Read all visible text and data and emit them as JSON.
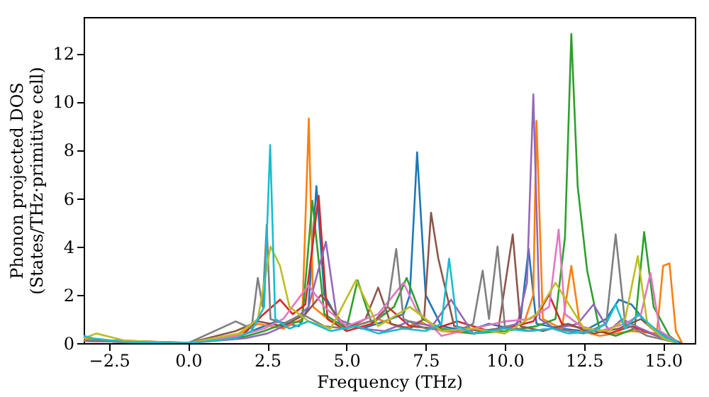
{
  "chart_data": {
    "type": "line",
    "xlabel": "Frequency (THz)",
    "ylabel": "Phonon projected DOS\n(States/THz·primitive cell)",
    "xlim": [
      -3.3,
      16.0
    ],
    "ylim": [
      0,
      13.5
    ],
    "xticks": [
      {
        "value": -2.5,
        "label": "−2.5"
      },
      {
        "value": 0,
        "label": "0.0"
      },
      {
        "value": 2.5,
        "label": "2.5"
      },
      {
        "value": 5,
        "label": "5.0"
      },
      {
        "value": 7.5,
        "label": "7.5"
      },
      {
        "value": 10,
        "label": "10.0"
      },
      {
        "value": 12.5,
        "label": "12.5"
      },
      {
        "value": 15,
        "label": "15.0"
      }
    ],
    "yticks": [
      0,
      2,
      4,
      6,
      8,
      10,
      12
    ],
    "grid": false,
    "legend": false,
    "marker": "none",
    "line_style": "solid",
    "series": [
      {
        "color": "#1f77b4",
        "x": [
          -3.3,
          -2,
          0,
          1.5,
          2.2,
          2.8,
          3.5,
          3.8,
          4.05,
          4.3,
          4.8,
          5.5,
          6.2,
          6.8,
          7.0,
          7.23,
          7.5,
          8.0,
          8.8,
          9.5,
          10.2,
          10.5,
          10.75,
          11.0,
          11.8,
          12.5,
          13.2,
          13.6,
          14.0,
          14.5,
          15.2,
          15.6
        ],
        "values": [
          0.1,
          0.05,
          0.02,
          0.2,
          0.6,
          0.9,
          0.7,
          1.5,
          6.5,
          2.0,
          0.8,
          0.6,
          0.9,
          1.2,
          2.0,
          7.9,
          2.0,
          0.7,
          0.5,
          0.8,
          0.6,
          1.0,
          3.9,
          0.8,
          0.6,
          0.5,
          1.0,
          1.8,
          1.6,
          0.8,
          0.2,
          0.0
        ]
      },
      {
        "color": "#ff7f0e",
        "x": [
          -3.3,
          -2.5,
          0,
          1.5,
          2.2,
          3.0,
          3.6,
          3.81,
          3.95,
          4.5,
          5.2,
          6.0,
          6.8,
          7.3,
          8.0,
          9.0,
          10.0,
          10.6,
          10.9,
          11.0,
          11.2,
          11.8,
          12.1,
          12.4,
          13.0,
          14.0,
          14.8,
          15.0,
          15.2,
          15.4,
          15.6
        ],
        "values": [
          0.2,
          0.1,
          0.02,
          0.3,
          0.8,
          0.6,
          1.0,
          9.3,
          1.5,
          0.9,
          0.7,
          1.0,
          0.6,
          0.9,
          0.5,
          0.4,
          0.6,
          0.8,
          2.0,
          9.2,
          1.0,
          0.6,
          3.2,
          0.5,
          0.3,
          0.5,
          0.4,
          3.2,
          3.3,
          0.5,
          0.0
        ]
      },
      {
        "color": "#2ca02c",
        "x": [
          -3.3,
          -2,
          0,
          1.6,
          2.4,
          3.0,
          3.6,
          3.92,
          4.3,
          5.0,
          5.35,
          5.8,
          6.5,
          6.9,
          7.4,
          8.0,
          9.0,
          10.0,
          11.0,
          11.6,
          11.9,
          12.1,
          12.3,
          12.6,
          13.0,
          13.5,
          14.1,
          14.4,
          14.7,
          15.2,
          15.5
        ],
        "values": [
          0.1,
          0.05,
          0.02,
          0.2,
          0.5,
          0.8,
          0.9,
          5.9,
          1.2,
          0.6,
          2.6,
          0.8,
          1.5,
          2.7,
          1.0,
          0.6,
          0.4,
          0.5,
          0.7,
          1.0,
          4.4,
          12.8,
          6.5,
          3.0,
          0.5,
          0.3,
          0.6,
          4.6,
          1.5,
          0.3,
          0.0
        ]
      },
      {
        "color": "#d62728",
        "x": [
          -3.3,
          -2,
          0,
          1.7,
          2.3,
          2.9,
          3.3,
          3.7,
          4.12,
          4.4,
          5.0,
          5.8,
          6.3,
          7.0,
          7.8,
          8.5,
          9.5,
          10.3,
          10.9,
          11.4,
          11.8,
          12.5,
          13.3,
          14.0,
          14.8,
          15.5
        ],
        "values": [
          0.1,
          0.05,
          0.0,
          0.3,
          1.1,
          1.8,
          1.2,
          1.6,
          6.1,
          1.0,
          0.5,
          0.8,
          1.5,
          0.7,
          0.6,
          0.9,
          0.5,
          0.7,
          0.9,
          2.0,
          0.8,
          0.6,
          0.4,
          0.7,
          0.3,
          0.0
        ]
      },
      {
        "color": "#9467bd",
        "x": [
          -3.3,
          -2,
          0,
          1.8,
          2.5,
          3.2,
          3.8,
          4.35,
          4.7,
          5.5,
          6.2,
          7.0,
          7.7,
          8.3,
          9.0,
          9.8,
          10.4,
          10.7,
          10.9,
          11.1,
          11.6,
          12.3,
          12.8,
          13.3,
          13.7,
          14.3,
          15.0,
          15.5
        ],
        "values": [
          0.1,
          0.05,
          0.0,
          0.2,
          0.4,
          0.8,
          1.5,
          4.2,
          1.0,
          0.6,
          0.5,
          0.9,
          0.7,
          1.8,
          0.4,
          0.6,
          0.8,
          2.5,
          10.3,
          1.0,
          0.6,
          0.8,
          1.6,
          0.5,
          1.0,
          0.6,
          0.2,
          0.0
        ]
      },
      {
        "color": "#8c564b",
        "x": [
          -3.3,
          -2,
          0,
          1.5,
          2.2,
          3.0,
          3.7,
          4.2,
          5.0,
          5.6,
          6.0,
          6.4,
          7.0,
          7.45,
          7.67,
          7.9,
          8.4,
          9.2,
          9.8,
          10.25,
          10.5,
          11.2,
          12.0,
          12.8,
          13.6,
          14.3,
          15.0,
          15.5
        ],
        "values": [
          0.1,
          0.1,
          0.0,
          0.5,
          0.9,
          0.7,
          1.2,
          2.0,
          0.6,
          1.0,
          2.3,
          0.8,
          0.6,
          1.0,
          5.4,
          3.5,
          0.7,
          0.5,
          0.6,
          4.5,
          0.7,
          0.5,
          0.8,
          0.4,
          0.6,
          1.0,
          0.2,
          0.0
        ]
      },
      {
        "color": "#e377c2",
        "x": [
          -3.3,
          -2,
          0,
          1.6,
          2.4,
          3.0,
          3.8,
          4.3,
          5.0,
          6.0,
          6.8,
          7.2,
          8.0,
          9.0,
          10.0,
          10.8,
          11.4,
          11.7,
          11.9,
          12.4,
          13.0,
          13.8,
          14.3,
          14.6,
          14.9,
          15.5
        ],
        "values": [
          0.1,
          0.05,
          0.0,
          0.3,
          0.6,
          1.0,
          2.4,
          1.5,
          0.7,
          1.2,
          2.5,
          1.4,
          0.3,
          0.6,
          0.9,
          1.0,
          1.5,
          4.7,
          1.2,
          0.7,
          0.5,
          0.8,
          1.2,
          2.9,
          0.5,
          0.0
        ]
      },
      {
        "color": "#7f7f7f",
        "x": [
          -3.3,
          -2,
          0,
          1.5,
          2.0,
          2.2,
          2.35,
          2.48,
          2.6,
          3.0,
          3.6,
          4.3,
          5.0,
          6.0,
          6.3,
          6.57,
          6.8,
          7.5,
          8.5,
          9.0,
          9.3,
          9.5,
          9.77,
          10.0,
          10.8,
          11.5,
          12.5,
          13.2,
          13.5,
          13.8,
          14.5,
          15.5
        ],
        "values": [
          0.1,
          0.05,
          0.0,
          0.9,
          0.6,
          2.7,
          1.5,
          4.9,
          1.0,
          0.8,
          1.2,
          0.7,
          0.6,
          1.0,
          1.5,
          3.9,
          1.0,
          0.6,
          0.5,
          0.8,
          3.0,
          1.0,
          4.0,
          0.7,
          0.5,
          0.6,
          0.4,
          0.8,
          4.5,
          0.8,
          0.3,
          0.0
        ]
      },
      {
        "color": "#bcbd22",
        "x": [
          -3.3,
          -2.9,
          -2,
          0,
          1.6,
          2.2,
          2.6,
          2.9,
          3.2,
          3.8,
          4.5,
          5.3,
          6.0,
          7.0,
          8.0,
          9.0,
          10.0,
          11.0,
          11.6,
          12.5,
          13.3,
          13.8,
          14.2,
          14.5,
          15.0,
          15.5
        ],
        "values": [
          0.2,
          0.4,
          0.1,
          0.0,
          0.4,
          1.0,
          4.0,
          3.2,
          1.5,
          0.9,
          0.6,
          2.6,
          0.7,
          1.5,
          0.5,
          0.6,
          0.4,
          1.2,
          2.5,
          0.6,
          0.5,
          1.0,
          3.6,
          0.8,
          0.2,
          0.0
        ]
      },
      {
        "color": "#17becf",
        "x": [
          -3.3,
          -3.0,
          -2,
          0,
          1.5,
          2.0,
          2.4,
          2.59,
          2.75,
          3.2,
          3.8,
          4.5,
          5.3,
          6.0,
          6.8,
          7.5,
          8.0,
          8.24,
          8.5,
          9.0,
          10.0,
          10.7,
          11.5,
          12.0,
          12.8,
          13.2,
          13.5,
          13.8,
          14.2,
          15.0,
          15.5
        ],
        "values": [
          0.3,
          0.2,
          0.05,
          0.0,
          0.2,
          0.5,
          1.5,
          8.2,
          1.0,
          0.6,
          0.9,
          0.5,
          0.7,
          0.4,
          0.6,
          0.5,
          0.8,
          3.5,
          0.7,
          0.4,
          0.6,
          0.5,
          0.6,
          0.4,
          0.5,
          0.8,
          1.6,
          0.6,
          1.2,
          0.3,
          0.0
        ]
      }
    ]
  }
}
